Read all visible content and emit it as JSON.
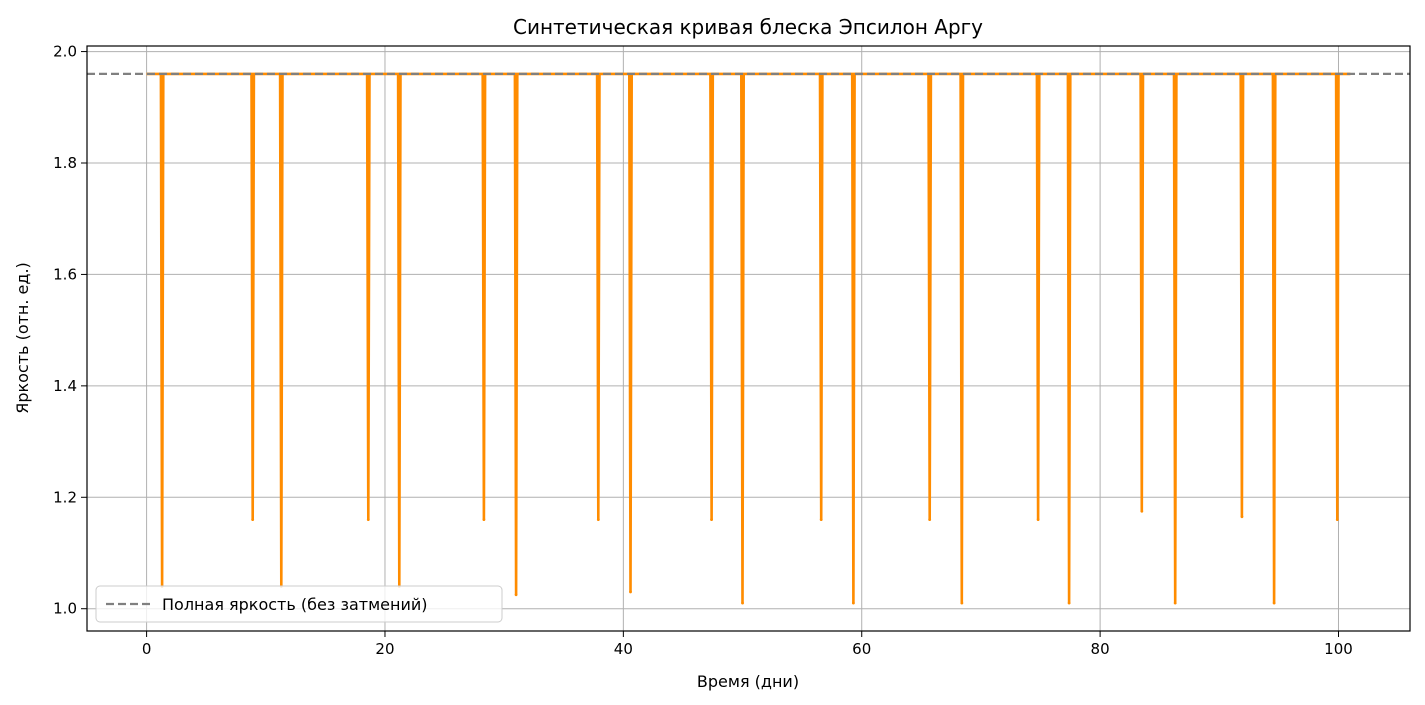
{
  "chart_data": {
    "type": "line",
    "title": "Синтетическая кривая блеска Эпсилон Аргу",
    "xlabel": "Время (дни)",
    "ylabel": "Яркость (отн. ед.)",
    "xlim": [
      -5,
      106
    ],
    "ylim": [
      0.96,
      2.01
    ],
    "xticks": [
      0,
      20,
      40,
      60,
      80,
      100
    ],
    "yticks": [
      1.0,
      1.2,
      1.4,
      1.6,
      1.8,
      2.0
    ],
    "xtick_labels": [
      "0",
      "20",
      "40",
      "60",
      "80",
      "100"
    ],
    "ytick_labels": [
      "1.0",
      "1.2",
      "1.4",
      "1.6",
      "1.8",
      "2.0"
    ],
    "grid": true,
    "legend_position": "lower-left",
    "series": [
      {
        "name": "",
        "color": "#ff8c00",
        "style": "solid",
        "baseline": 1.96,
        "x_range": [
          0,
          101
        ],
        "dips": [
          {
            "t": 1.3,
            "depth": 1.04
          },
          {
            "t": 8.9,
            "depth": 1.16
          },
          {
            "t": 11.3,
            "depth": 1.04
          },
          {
            "t": 18.6,
            "depth": 1.16
          },
          {
            "t": 21.2,
            "depth": 1.04
          },
          {
            "t": 28.3,
            "depth": 1.16
          },
          {
            "t": 31.0,
            "depth": 1.025
          },
          {
            "t": 37.9,
            "depth": 1.16
          },
          {
            "t": 40.6,
            "depth": 1.03
          },
          {
            "t": 47.4,
            "depth": 1.16
          },
          {
            "t": 50.0,
            "depth": 1.01
          },
          {
            "t": 56.6,
            "depth": 1.16
          },
          {
            "t": 59.3,
            "depth": 1.01
          },
          {
            "t": 65.7,
            "depth": 1.16
          },
          {
            "t": 68.4,
            "depth": 1.01
          },
          {
            "t": 74.8,
            "depth": 1.16
          },
          {
            "t": 77.4,
            "depth": 1.01
          },
          {
            "t": 83.5,
            "depth": 1.175
          },
          {
            "t": 86.3,
            "depth": 1.01
          },
          {
            "t": 91.9,
            "depth": 1.165
          },
          {
            "t": 94.6,
            "depth": 1.01
          },
          {
            "t": 99.9,
            "depth": 1.16
          }
        ]
      },
      {
        "name": "Полная яркость (без затмений)",
        "color": "#808080",
        "style": "dashed",
        "y": 1.96
      }
    ]
  }
}
